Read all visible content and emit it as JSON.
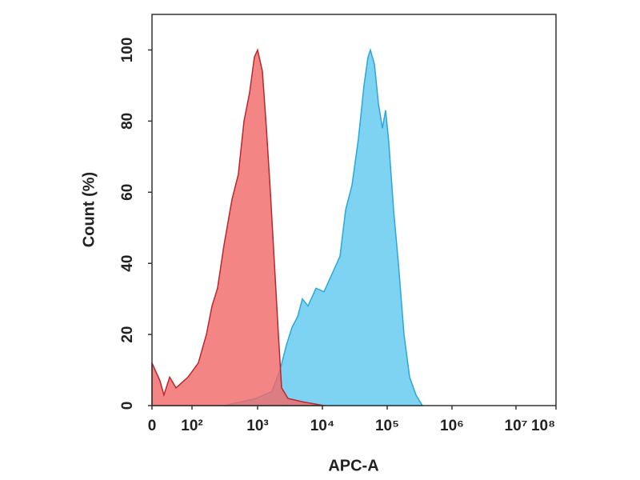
{
  "chart_data": {
    "type": "area",
    "xlabel": "APC-A",
    "ylabel": "Count  (%)",
    "xscale": "biexponential",
    "xlim": [
      0,
      100000000
    ],
    "ylim": [
      0,
      110
    ],
    "xticks": [
      0,
      {
        "value": 100,
        "label": "10²"
      },
      {
        "value": 1000,
        "label": "10³"
      },
      {
        "value": 10000,
        "label": "10⁴"
      },
      {
        "value": 100000,
        "label": "10⁵"
      },
      {
        "value": 1000000,
        "label": "10⁶"
      },
      {
        "value": 10000000,
        "label": "10⁷"
      },
      {
        "value": 100000000,
        "label": "10⁸"
      }
    ],
    "yticks": [
      0,
      20,
      40,
      60,
      80,
      100
    ],
    "series": [
      {
        "color": "#7fd3f2",
        "edge": "#2aa7d8",
        "x": [
          307,
          540,
          946,
          1667,
          2218,
          2780,
          3395,
          4140,
          4909,
          5995,
          7962,
          10590,
          14060,
          18710,
          22800,
          28640,
          35970,
          43860,
          50580,
          55080,
          63450,
          73100,
          84340,
          94430,
          105800,
          125600,
          148900,
          181600,
          221800,
          278200,
          349100
        ],
        "values": [
          0,
          1,
          2,
          4,
          10,
          17,
          22,
          25,
          30,
          28,
          33,
          32,
          37,
          42,
          55,
          62,
          75,
          90,
          98,
          100,
          96,
          85,
          78,
          83,
          74,
          55,
          40,
          20,
          8,
          3,
          0
        ]
      },
      {
        "color": "#f06a6a",
        "edge": "#b8282c",
        "x": [
          0,
          2.1,
          3.7,
          7.5,
          15.8,
          63,
          125,
          166,
          202,
          245,
          307,
          407,
          509,
          620,
          755,
          893,
          1000,
          1186,
          1368,
          1578,
          1816,
          2094,
          2344,
          2944,
          5200,
          10600
        ],
        "values": [
          12,
          7,
          3,
          8,
          5,
          8,
          12,
          20,
          28,
          33,
          45,
          58,
          65,
          80,
          88,
          98,
          100,
          94,
          78,
          60,
          40,
          20,
          5,
          2,
          1,
          0
        ]
      }
    ]
  }
}
